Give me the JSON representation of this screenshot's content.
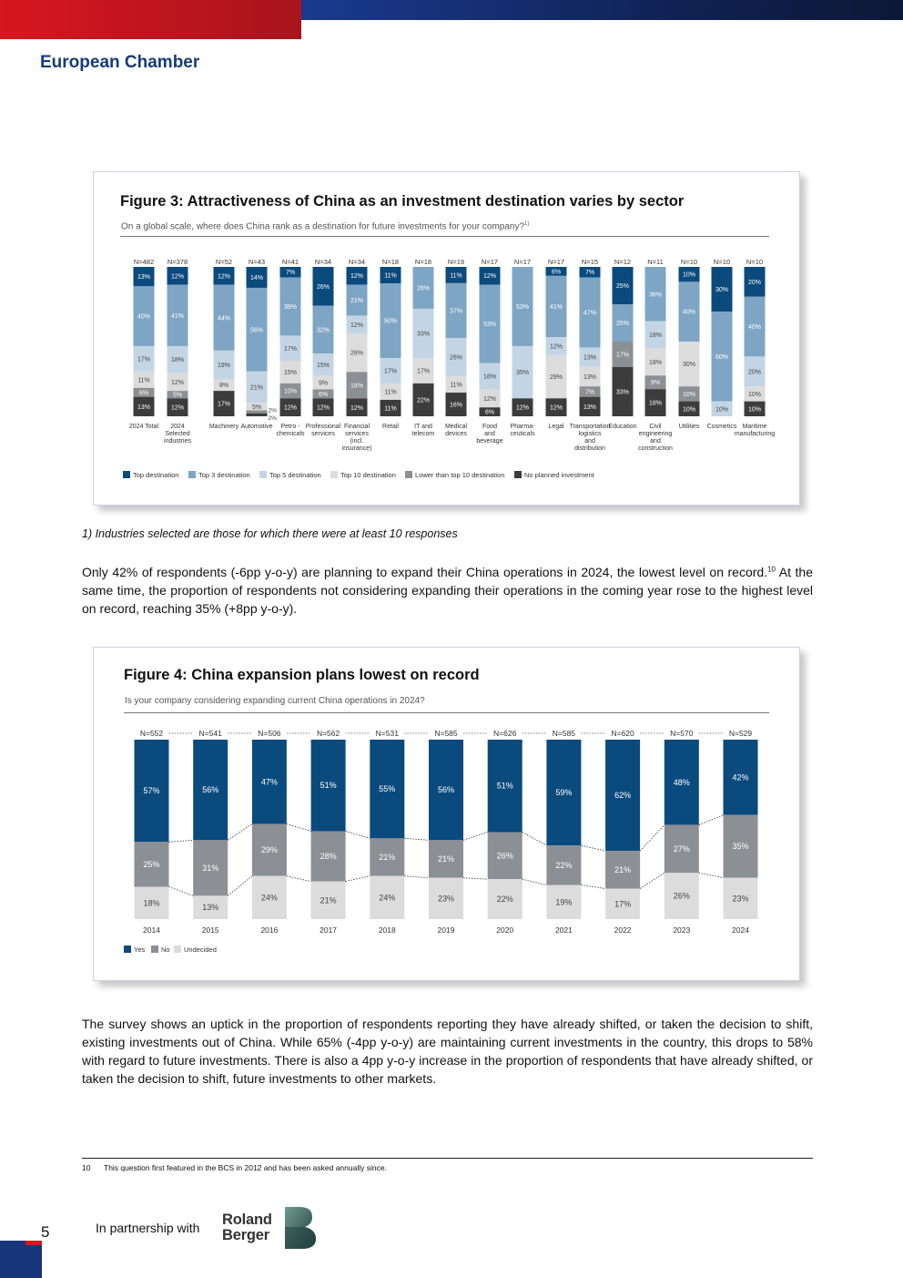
{
  "header": {
    "brand": "European Chamber"
  },
  "figure3": {
    "title": "Figure 3: Attractiveness of China as an investment destination varies by sector",
    "subtitle": "On a global scale, where does China rank as a destination for future investments for your company?",
    "subtitle_sup": "1)",
    "note": "1) Industries selected are those for which there were at least 10 responses"
  },
  "paragraph1": {
    "text": "Only 42% of respondents (-6pp y-o-y) are planning to expand their China operations in 2024, the lowest level on record.",
    "sup": "10",
    "text2": " At the same time, the proportion of respondents not considering expanding their operations in the coming year rose to the highest level on record, reaching 35% (+8pp y-o-y)."
  },
  "figure4": {
    "title": "Figure 4: China expansion plans lowest on record",
    "subtitle": "Is your company considering expanding current China operations in 2024?"
  },
  "paragraph2": {
    "text": "The survey shows an uptick in the proportion of respondents reporting they have already shifted, or taken the decision to shift, existing investments out of China. While 65% (-4pp y-o-y) are maintaining current investments in the country, this drops to 58% with regard to future investments. There is also a 4pp y-o-y increase in the proportion of respondents that have already shifted, or taken the decision to shift, future investments to other markets."
  },
  "footnote": {
    "number": "10",
    "text": "This question first featured in the BCS in 2012 and has been asked annually since."
  },
  "footer": {
    "page_number": "5",
    "partner_label": "In partnership with",
    "partner_name_line1": "Roland",
    "partner_name_line2": "Berger"
  },
  "colors": {
    "top": "#0b4a7d",
    "top3": "#7ea5c4",
    "top5": "#c3d5e4",
    "top10": "#dcdcdc",
    "lower": "#8c8f94",
    "none": "#3c3c3c",
    "yes": "#0b4a7d",
    "no": "#8c8f94",
    "undecided": "#dcdcdc"
  },
  "chart_data": [
    {
      "type": "bar",
      "stacked": true,
      "categories": [
        [
          "2024 Total"
        ],
        [
          "2024",
          "Selected",
          "industries"
        ],
        [
          "Machinery"
        ],
        [
          "Automotive"
        ],
        [
          "Petro -",
          "chemicals"
        ],
        [
          "Professional",
          "services"
        ],
        [
          "Financial",
          "services",
          "(incl.",
          "insurance)"
        ],
        [
          "Retail"
        ],
        [
          "IT and",
          "telecom"
        ],
        [
          "Medical",
          "devices"
        ],
        [
          "Food",
          "and",
          "beverage"
        ],
        [
          "Pharma-",
          "ceuticals"
        ],
        [
          "Legal"
        ],
        [
          "Transportation",
          "logistics",
          "and",
          "distribution"
        ],
        [
          "Education"
        ],
        [
          "Civil",
          "engineering",
          "and",
          "construction"
        ],
        [
          "Utilities"
        ],
        [
          "Cosmetics"
        ],
        [
          "Maritime",
          "manufacturing"
        ]
      ],
      "n": [
        "N=482",
        "N=378",
        "N=52",
        "N=43",
        "N=41",
        "N=34",
        "N=34",
        "N=18",
        "N=18",
        "N=19",
        "N=17",
        "N=17",
        "N=17",
        "N=15",
        "N=12",
        "N=11",
        "N=10",
        "N=10",
        "N=10"
      ],
      "series": [
        {
          "name": "Top destination",
          "color": "#0b4a7d",
          "values": [
            13,
            12,
            12,
            14,
            7,
            26,
            12,
            11,
            0,
            11,
            12,
            0,
            6,
            7,
            25,
            0,
            10,
            30,
            20
          ]
        },
        {
          "name": "Top 3 destination",
          "color": "#7ea5c4",
          "values": [
            40,
            41,
            44,
            56,
            39,
            32,
            21,
            50,
            28,
            37,
            53,
            53,
            41,
            47,
            25,
            36,
            40,
            60,
            40
          ]
        },
        {
          "name": "Top 5 destination",
          "color": "#c3d5e4",
          "values": [
            17,
            18,
            19,
            21,
            17,
            15,
            12,
            17,
            33,
            26,
            18,
            35,
            12,
            13,
            0,
            18,
            0,
            10,
            20
          ]
        },
        {
          "name": "Top 10 destination",
          "color": "#dcdcdc",
          "values": [
            11,
            12,
            8,
            5,
            15,
            9,
            26,
            11,
            17,
            11,
            12,
            0,
            29,
            13,
            0,
            18,
            30,
            0,
            10
          ]
        },
        {
          "name": "Lower than top 10 destination",
          "color": "#8c8f94",
          "values": [
            6,
            5,
            0,
            2,
            10,
            6,
            18,
            0,
            0,
            0,
            0,
            0,
            0,
            7,
            17,
            9,
            10,
            0,
            0
          ]
        },
        {
          "name": "No planned investment",
          "color": "#3c3c3c",
          "values": [
            13,
            12,
            17,
            2,
            12,
            12,
            12,
            11,
            22,
            16,
            6,
            12,
            12,
            13,
            33,
            18,
            10,
            0,
            10
          ]
        }
      ],
      "legend_position": "bottom",
      "ylim": [
        0,
        100
      ]
    },
    {
      "type": "bar",
      "stacked": true,
      "categories": [
        "2014",
        "2015",
        "2016",
        "2017",
        "2018",
        "2019",
        "2020",
        "2021",
        "2022",
        "2023",
        "2024"
      ],
      "n": [
        "N=552",
        "N=541",
        "N=506",
        "N=562",
        "N=531",
        "N=585",
        "N=626",
        "N=585",
        "N=620",
        "N=570",
        "N=529"
      ],
      "series": [
        {
          "name": "Yes",
          "color": "#0b4a7d",
          "values": [
            57,
            56,
            47,
            51,
            55,
            56,
            51,
            59,
            62,
            48,
            42
          ]
        },
        {
          "name": "No",
          "color": "#8c8f94",
          "values": [
            25,
            31,
            29,
            28,
            21,
            21,
            26,
            22,
            21,
            27,
            35
          ]
        },
        {
          "name": "Undecided",
          "color": "#dcdcdc",
          "values": [
            18,
            13,
            24,
            21,
            24,
            23,
            22,
            19,
            17,
            26,
            23
          ]
        }
      ],
      "legend_position": "bottom-left",
      "ylim": [
        0,
        100
      ]
    }
  ]
}
